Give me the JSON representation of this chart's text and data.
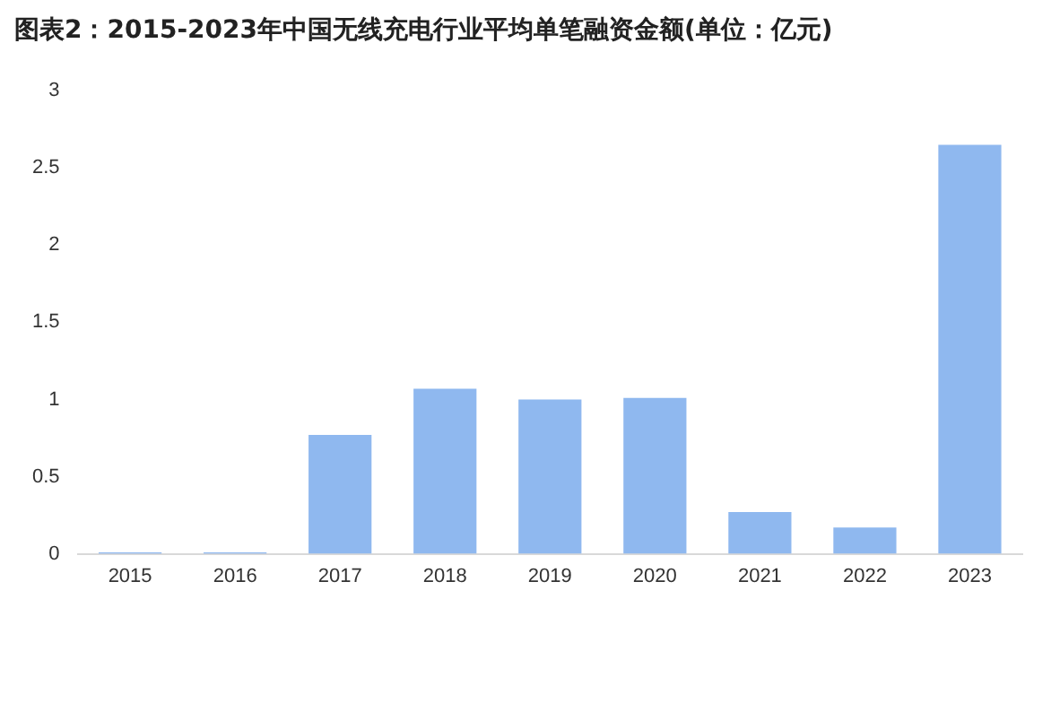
{
  "chart_data": {
    "type": "bar",
    "title": "图表2：2015-2023年中国无线充电行业平均单笔融资金额(单位：亿元)",
    "categories": [
      "2015",
      "2016",
      "2017",
      "2018",
      "2019",
      "2020",
      "2021",
      "2022",
      "2023"
    ],
    "values": [
      0.01,
      0.01,
      0.77,
      1.07,
      1.0,
      1.01,
      0.27,
      0.17,
      2.65
    ],
    "color": "#8fb8ef",
    "ylim": [
      0,
      3
    ],
    "yticks": [
      0,
      0.5,
      1,
      1.5,
      2,
      2.5,
      3
    ],
    "grid": false,
    "legend": false
  }
}
